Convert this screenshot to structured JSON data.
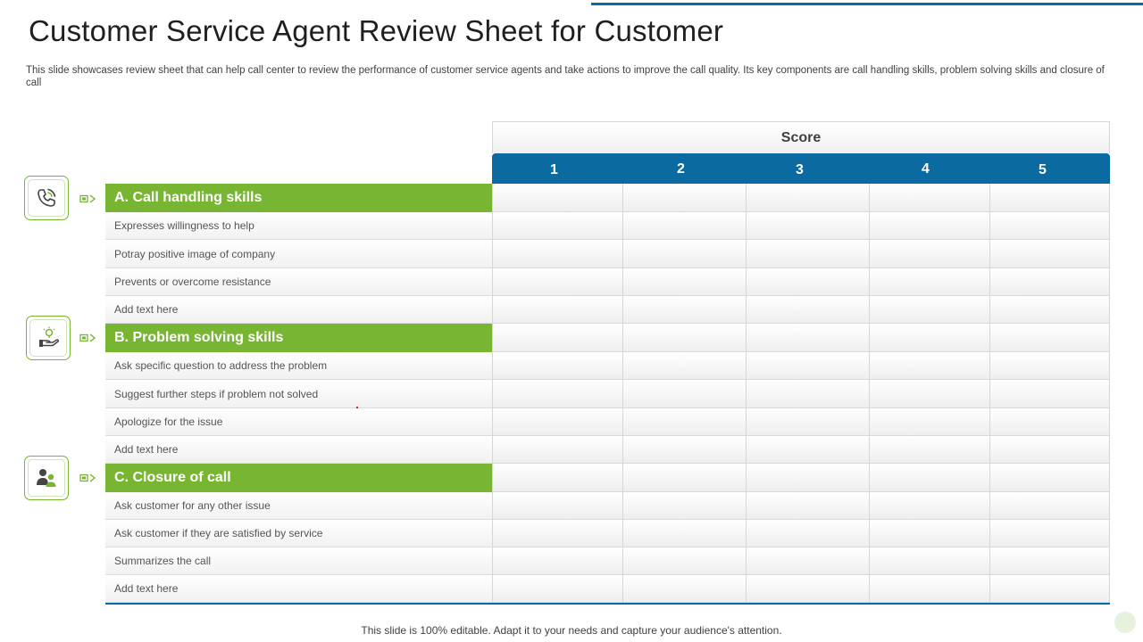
{
  "title": "Customer Service Agent Review Sheet for Customer",
  "subtitle": "This slide showcases review sheet that can help call center to review the performance of customer service agents and take actions to improve the call quality. Its key components are call handling skills, problem solving skills and closure of call",
  "score_label": "Score",
  "score_columns": [
    "1",
    "2",
    "3",
    "4",
    "5"
  ],
  "sections": [
    {
      "label": "A. Call handling skills",
      "icon": "phone-call-icon",
      "items": [
        "Expresses willingness to help",
        "Potray positive image of company",
        "Prevents or overcome resistance",
        "Add text here"
      ]
    },
    {
      "label": "B. Problem solving skills",
      "icon": "hand-lightbulb-icon",
      "items": [
        "Ask specific question to address the problem",
        "Suggest further steps if problem not solved",
        "Apologize for the issue",
        "Add text here"
      ]
    },
    {
      "label": "C. Closure of call",
      "icon": "users-icon",
      "items": [
        "Ask customer for any other issue",
        "Ask customer if they are satisfied by service",
        "Summarizes the call",
        "Add text here"
      ]
    }
  ],
  "footer": "This slide is 100% editable. Adapt it to your needs and capture your audience's attention.",
  "colors": {
    "accent_green": "#77b533",
    "accent_blue": "#0b6aa0"
  }
}
